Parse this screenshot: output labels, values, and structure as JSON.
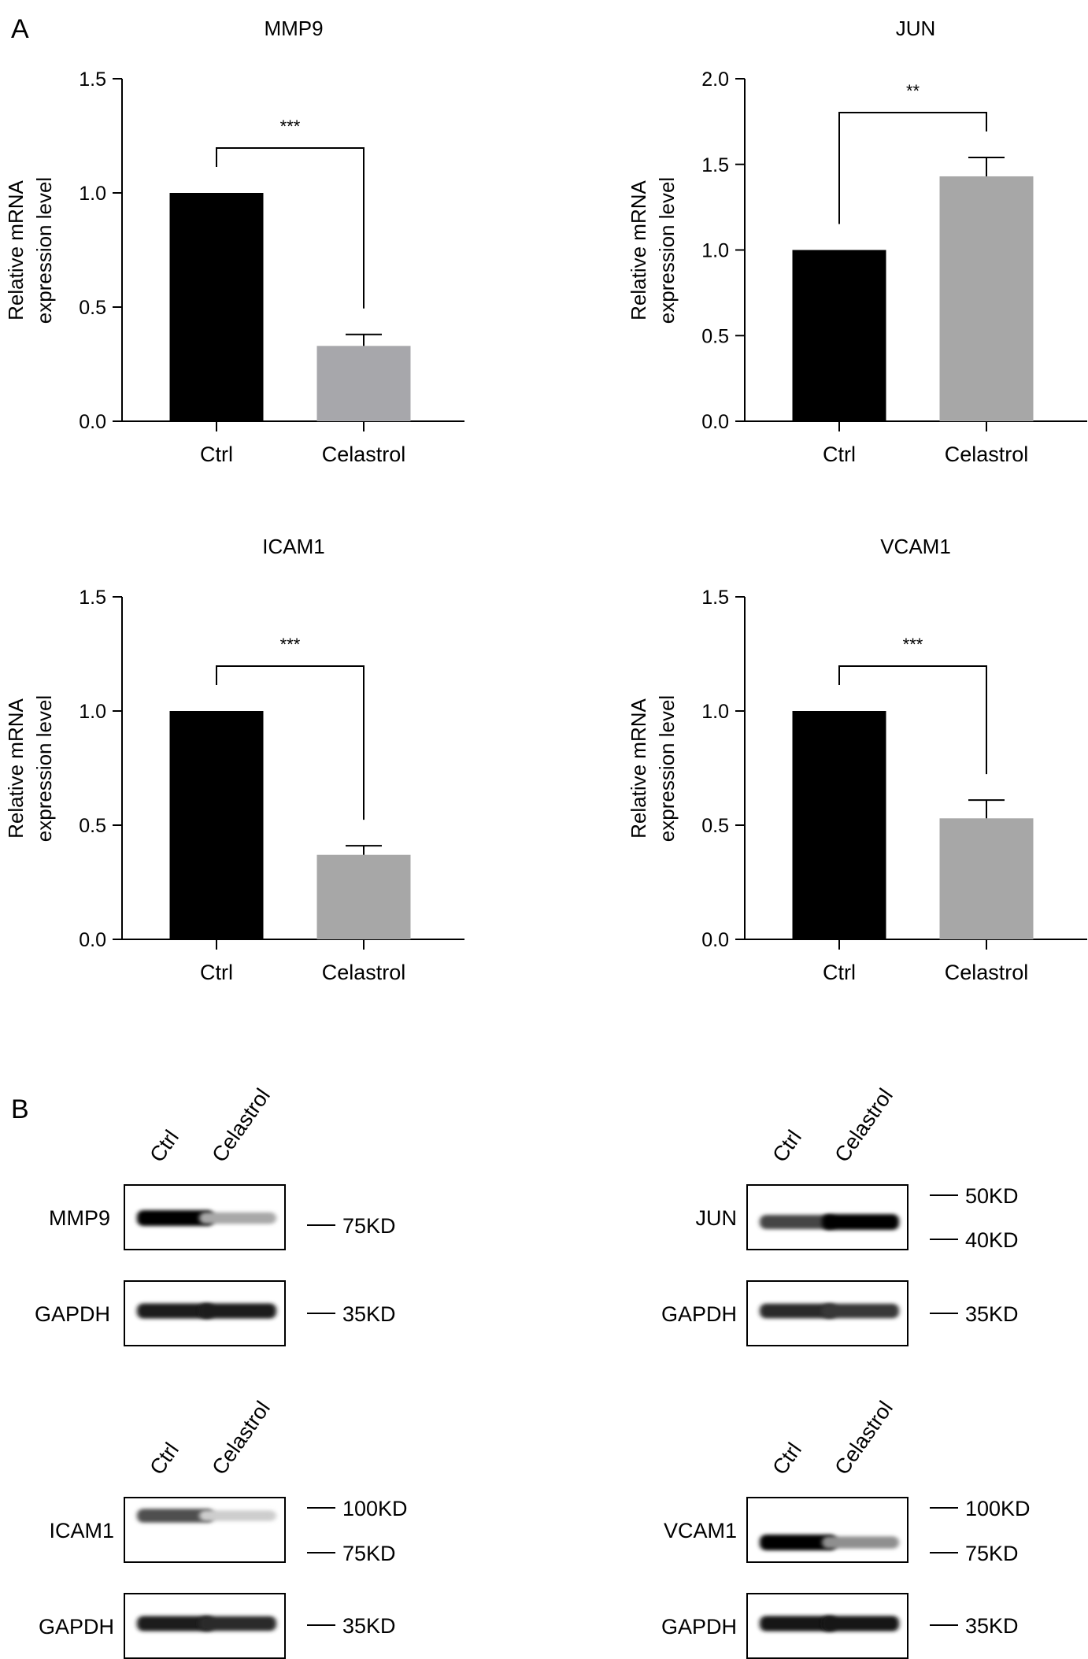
{
  "panels": {
    "a": "A",
    "b": "B"
  },
  "chart_data": [
    {
      "type": "bar",
      "title": "MMP9",
      "ylabel_lines": [
        "Relative mRNA",
        "expression level"
      ],
      "categories": [
        "Ctrl",
        "Celastrol"
      ],
      "values": [
        1.0,
        0.33
      ],
      "errors": [
        0,
        0.05
      ],
      "colors": [
        "#000000",
        "#a7a7ab"
      ],
      "ylim": [
        0,
        1.5
      ],
      "yticks": [
        "0.0",
        "0.5",
        "1.0",
        "1.5"
      ],
      "significance": "***",
      "grid": false
    },
    {
      "type": "bar",
      "title": "JUN",
      "ylabel_lines": [
        "Relative mRNA",
        "expression level"
      ],
      "categories": [
        "Ctrl",
        "Celastrol"
      ],
      "values": [
        1.0,
        1.43
      ],
      "errors": [
        0,
        0.11
      ],
      "colors": [
        "#000000",
        "#a7a7a7"
      ],
      "ylim": [
        0,
        2.0
      ],
      "yticks": [
        "0.0",
        "0.5",
        "1.0",
        "1.5",
        "2.0"
      ],
      "significance": "**",
      "grid": false
    },
    {
      "type": "bar",
      "title": "ICAM1",
      "ylabel_lines": [
        "Relative mRNA",
        "expression level"
      ],
      "categories": [
        "Ctrl",
        "Celastrol"
      ],
      "values": [
        1.0,
        0.37
      ],
      "errors": [
        0,
        0.04
      ],
      "colors": [
        "#000000",
        "#a7a7a7"
      ],
      "ylim": [
        0,
        1.5
      ],
      "yticks": [
        "0.0",
        "0.5",
        "1.0",
        "1.5"
      ],
      "significance": "***",
      "grid": false
    },
    {
      "type": "bar",
      "title": "VCAM1",
      "ylabel_lines": [
        "Relative mRNA",
        "expression level"
      ],
      "categories": [
        "Ctrl",
        "Celastrol"
      ],
      "values": [
        1.0,
        0.53
      ],
      "errors": [
        0,
        0.08
      ],
      "colors": [
        "#000000",
        "#a7a7a7"
      ],
      "ylim": [
        0,
        1.5
      ],
      "yticks": [
        "0.0",
        "0.5",
        "1.0",
        "1.5"
      ],
      "significance": "***",
      "grid": false
    }
  ],
  "blots": [
    {
      "lanes": [
        "Ctrl",
        "Celastrol"
      ],
      "target": {
        "label": "MMP9",
        "intensity": [
          1.0,
          0.35
        ],
        "markers": [
          "75KD"
        ]
      },
      "loading": {
        "label": "GAPDH",
        "intensity": [
          0.9,
          0.9
        ],
        "markers": [
          "35KD"
        ]
      }
    },
    {
      "lanes": [
        "Ctrl",
        "Celastrol"
      ],
      "target": {
        "label": "JUN",
        "intensity": [
          0.75,
          1.0
        ],
        "markers": [
          "50KD",
          "40KD"
        ]
      },
      "loading": {
        "label": "GAPDH",
        "intensity": [
          0.85,
          0.8
        ],
        "markers": [
          "35KD"
        ]
      }
    },
    {
      "lanes": [
        "Ctrl",
        "Celastrol"
      ],
      "target": {
        "label": "ICAM1",
        "intensity": [
          0.7,
          0.2
        ],
        "markers": [
          "100KD",
          "75KD"
        ]
      },
      "loading": {
        "label": "GAPDH",
        "intensity": [
          0.9,
          0.85
        ],
        "markers": [
          "35KD"
        ]
      }
    },
    {
      "lanes": [
        "Ctrl",
        "Celastrol"
      ],
      "target": {
        "label": "VCAM1",
        "intensity": [
          1.0,
          0.45
        ],
        "markers": [
          "100KD",
          "75KD"
        ]
      },
      "loading": {
        "label": "GAPDH",
        "intensity": [
          0.95,
          0.95
        ],
        "markers": [
          "35KD"
        ]
      }
    }
  ]
}
